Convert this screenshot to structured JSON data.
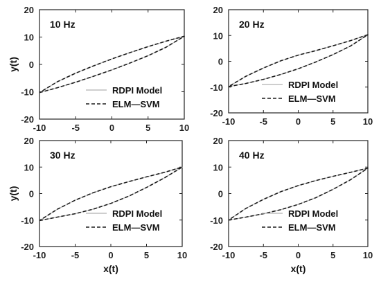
{
  "chart_data": [
    {
      "type": "line",
      "title": "10 Hz",
      "xlabel": "",
      "ylabel": "y(t)",
      "xlim": [
        -10,
        10
      ],
      "ylim": [
        -20,
        20
      ],
      "xticks": [
        -10,
        -5,
        0,
        5,
        10
      ],
      "yticks": [
        -20,
        -10,
        0,
        10,
        20
      ],
      "grid": false,
      "legend": "bottom-right",
      "series": [
        {
          "name": "RDPI Model",
          "color": "#b0b0b0",
          "style": "solid",
          "x": [
            -10,
            -7.5,
            -5,
            -2.5,
            0,
            2.5,
            5,
            7.5,
            10,
            7.5,
            5,
            2.5,
            0,
            -2.5,
            -5,
            -7.5,
            -10
          ],
          "y": [
            -10.3,
            -8.5,
            -6.5,
            -4.3,
            -2.0,
            0.5,
            3.2,
            6.3,
            10.3,
            8.5,
            6.5,
            4.3,
            2.0,
            -0.5,
            -3.2,
            -6.3,
            -10.3
          ]
        },
        {
          "name": "ELM—SVM",
          "color": "#1a1a1a",
          "style": "dashed",
          "x": [
            -10,
            -7.5,
            -5,
            -2.5,
            0,
            2.5,
            5,
            7.5,
            10,
            7.5,
            5,
            2.5,
            0,
            -2.5,
            -5,
            -7.5,
            -10
          ],
          "y": [
            -10.3,
            -8.5,
            -6.5,
            -4.3,
            -2.0,
            0.5,
            3.2,
            6.3,
            10.3,
            8.5,
            6.5,
            4.3,
            2.0,
            -0.5,
            -3.2,
            -6.3,
            -10.3
          ]
        }
      ]
    },
    {
      "type": "line",
      "title": "20 Hz",
      "xlabel": "",
      "ylabel": "",
      "xlim": [
        -10,
        10
      ],
      "ylim": [
        -20,
        20
      ],
      "xticks": [
        -10,
        -5,
        0,
        5,
        10
      ],
      "yticks": [
        -20,
        -10,
        0,
        10,
        20
      ],
      "grid": false,
      "legend": "bottom-right",
      "series": [
        {
          "name": "RDPI Model",
          "color": "#b0b0b0",
          "style": "solid",
          "x": [
            -10,
            -7.5,
            -5,
            -2.5,
            0,
            2.5,
            5,
            7.5,
            10,
            7.5,
            5,
            2.5,
            0,
            -2.5,
            -5,
            -7.5,
            -10
          ],
          "y": [
            -9.8,
            -8.6,
            -7.0,
            -5.1,
            -2.9,
            -0.3,
            2.6,
            5.9,
            10.3,
            8.0,
            6.0,
            4.1,
            2.4,
            0.2,
            -2.6,
            -5.8,
            -9.8
          ]
        },
        {
          "name": "ELM—SVM",
          "color": "#1a1a1a",
          "style": "dashed",
          "x": [
            -10,
            -7.5,
            -5,
            -2.5,
            0,
            2.5,
            5,
            7.5,
            10,
            7.5,
            5,
            2.5,
            0,
            -2.5,
            -5,
            -7.5,
            -10
          ],
          "y": [
            -9.8,
            -8.6,
            -7.0,
            -5.1,
            -2.9,
            -0.3,
            2.6,
            5.9,
            10.3,
            8.0,
            6.0,
            4.1,
            2.4,
            0.2,
            -2.6,
            -5.8,
            -9.8
          ]
        }
      ]
    },
    {
      "type": "line",
      "title": "30 Hz",
      "xlabel": "x(t)",
      "ylabel": "y(t)",
      "xlim": [
        -10,
        10
      ],
      "ylim": [
        -20,
        20
      ],
      "xticks": [
        -10,
        -5,
        0,
        5,
        10
      ],
      "yticks": [
        -20,
        -10,
        0,
        10,
        20
      ],
      "grid": false,
      "legend": "bottom-right",
      "series": [
        {
          "name": "RDPI Model",
          "color": "#b0b0b0",
          "style": "solid",
          "x": [
            -10,
            -7.5,
            -5,
            -2.5,
            0,
            2.5,
            5,
            7.5,
            10,
            7.5,
            5,
            2.5,
            0,
            -2.5,
            -5,
            -7.5,
            -10
          ],
          "y": [
            -10.2,
            -8.9,
            -7.6,
            -5.9,
            -3.7,
            -1.0,
            2.3,
            5.9,
            10.0,
            8.0,
            6.3,
            4.5,
            2.6,
            0.3,
            -2.5,
            -5.9,
            -10.2
          ]
        },
        {
          "name": "ELM—SVM",
          "color": "#1a1a1a",
          "style": "dashed",
          "x": [
            -10,
            -7.5,
            -5,
            -2.5,
            0,
            2.5,
            5,
            7.5,
            10,
            7.5,
            5,
            2.5,
            0,
            -2.5,
            -5,
            -7.5,
            -10
          ],
          "y": [
            -10.2,
            -8.9,
            -7.6,
            -5.9,
            -3.7,
            -1.0,
            2.3,
            5.9,
            10.0,
            8.0,
            6.3,
            4.5,
            2.6,
            0.3,
            -2.5,
            -5.9,
            -10.2
          ]
        }
      ]
    },
    {
      "type": "line",
      "title": "40 Hz",
      "xlabel": "x(t)",
      "ylabel": "",
      "xlim": [
        -10,
        10
      ],
      "ylim": [
        -20,
        20
      ],
      "xticks": [
        -10,
        -5,
        0,
        5,
        10
      ],
      "yticks": [
        -20,
        -10,
        0,
        10,
        20
      ],
      "grid": false,
      "legend": "bottom-right",
      "series": [
        {
          "name": "RDPI Model",
          "color": "#b0b0b0",
          "style": "solid",
          "x": [
            -10,
            -7.5,
            -5,
            -2.5,
            0,
            2.5,
            5,
            7.5,
            10,
            7.5,
            5,
            2.5,
            0,
            -2.5,
            -5,
            -7.5,
            -10
          ],
          "y": [
            -10.0,
            -8.9,
            -7.6,
            -6.1,
            -4.1,
            -1.6,
            1.6,
            5.2,
            9.6,
            8.0,
            6.5,
            4.9,
            3.0,
            0.7,
            -2.2,
            -5.6,
            -10.0
          ]
        },
        {
          "name": "ELM—SVM",
          "color": "#1a1a1a",
          "style": "dashed",
          "x": [
            -10,
            -7.5,
            -5,
            -2.5,
            0,
            2.5,
            5,
            7.5,
            10,
            7.5,
            5,
            2.5,
            0,
            -2.5,
            -5,
            -7.5,
            -10
          ],
          "y": [
            -10.0,
            -8.9,
            -7.6,
            -6.1,
            -4.1,
            -1.6,
            1.6,
            5.2,
            9.6,
            8.0,
            6.5,
            4.9,
            3.0,
            0.7,
            -2.2,
            -5.6,
            -10.0
          ]
        }
      ]
    }
  ]
}
